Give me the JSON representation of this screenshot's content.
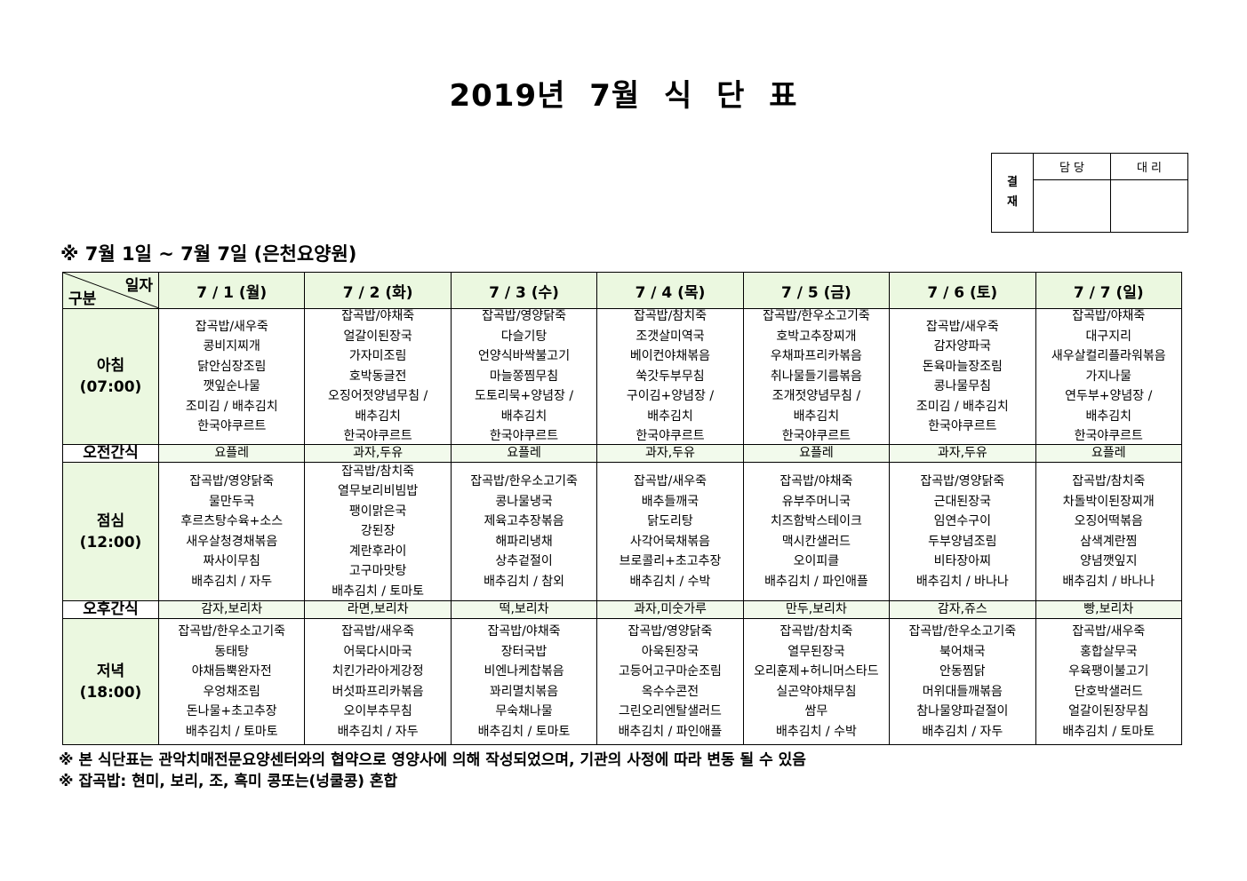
{
  "title": "2019년 7월 식 단 표",
  "approval": {
    "side_label": "결\n재",
    "side_top": "결",
    "side_bottom": "재",
    "col1": "담 당",
    "col2": "대 리"
  },
  "period": "※ 7월 1일 ~ 7월 7일 (은천요양원)",
  "corner": {
    "top": "일자",
    "bottom": "구분"
  },
  "days": [
    "7 / 1 (월)",
    "7 / 2 (화)",
    "7 / 3 (수)",
    "7 / 4 (목)",
    "7 / 5 (금)",
    "7 / 6 (토)",
    "7 / 7 (일)"
  ],
  "rows": [
    {
      "label": "아침",
      "time": "(07:00)",
      "type": "meal",
      "cells": [
        [
          "잡곡밥/새우죽",
          "콩비지찌개",
          "닭안심장조림",
          "깻잎순나물",
          "조미김 / 배추김치",
          "한국야쿠르트"
        ],
        [
          "잡곡밥/야채죽",
          "얼갈이된장국",
          "가자미조림",
          "호박동글전",
          "오징어젓양념무침 /",
          "배추김치",
          "한국야쿠르트"
        ],
        [
          "잡곡밥/영양닭죽",
          "다슬기탕",
          "언양식바싹불고기",
          "마늘쫑찜무침",
          "도토리묵+양념장 /",
          "배추김치",
          "한국야쿠르트"
        ],
        [
          "잡곡밥/참치죽",
          "조갯살미역국",
          "베이컨야채볶음",
          "쑥갓두부무침",
          "구이김+양념장 /",
          "배추김치",
          "한국야쿠르트"
        ],
        [
          "잡곡밥/한우소고기죽",
          "호박고추장찌개",
          "우채파프리카볶음",
          "취나물들기름볶음",
          "조개젓양념무침 /",
          "배추김치",
          "한국야쿠르트"
        ],
        [
          "잡곡밥/새우죽",
          "감자양파국",
          "돈육마늘장조림",
          "콩나물무침",
          "조미김 / 배추김치",
          "한국야쿠르트"
        ],
        [
          "잡곡밥/야채죽",
          "대구지리",
          "새우살컬리플라워볶음",
          "가지나물",
          "연두부+양념장 /",
          "배추김치",
          "한국야쿠르트"
        ]
      ]
    },
    {
      "label": "오전간식",
      "type": "snack",
      "cells": [
        "요플레",
        "과자,두유",
        "요플레",
        "과자,두유",
        "요플레",
        "과자,두유",
        "요플레"
      ]
    },
    {
      "label": "점심",
      "time": "(12:00)",
      "type": "meal",
      "cells": [
        [
          "잡곡밥/영양닭죽",
          "물만두국",
          "후르츠탕수육+소스",
          "새우살청경채볶음",
          "짜사이무침",
          "배추김치 / 자두"
        ],
        [
          "잡곡밥/참치죽",
          "열무보리비빔밥",
          "팽이맑은국",
          "강된장",
          "계란후라이",
          "고구마맛탕",
          "배추김치 / 토마토"
        ],
        [
          "잡곡밥/한우소고기죽",
          "콩나물냉국",
          "제육고추장볶음",
          "해파리냉채",
          "상추겉절이",
          "배추김치 / 참외"
        ],
        [
          "잡곡밥/새우죽",
          "배추들깨국",
          "닭도리탕",
          "사각어묵채볶음",
          "브로콜리+초고추장",
          "배추김치 / 수박"
        ],
        [
          "잡곡밥/야채죽",
          "유부주머니국",
          "치즈함박스테이크",
          "맥시칸샐러드",
          "오이피클",
          "배추김치 / 파인애플"
        ],
        [
          "잡곡밥/영양닭죽",
          "근대된장국",
          "임연수구이",
          "두부양념조림",
          "비타장아찌",
          "배추김치 / 바나나"
        ],
        [
          "잡곡밥/참치죽",
          "차돌박이된장찌개",
          "오징어떡볶음",
          "삼색계란찜",
          "양념깻잎지",
          "배추김치 / 바나나"
        ]
      ]
    },
    {
      "label": "오후간식",
      "type": "snack",
      "cells": [
        "감자,보리차",
        "라면,보리차",
        "떡,보리차",
        "과자,미숫가루",
        "만두,보리차",
        "감자,쥬스",
        "빵,보리차"
      ]
    },
    {
      "label": "저녁",
      "time": "(18:00)",
      "type": "meal",
      "cells": [
        [
          "잡곡밥/한우소고기죽",
          "동태탕",
          "야채듬뿍완자전",
          "우엉채조림",
          "돈나물+초고추장",
          "배추김치 / 토마토"
        ],
        [
          "잡곡밥/새우죽",
          "어묵다시마국",
          "치킨가라아게강정",
          "버섯파프리카볶음",
          "오이부추무침",
          "배추김치 / 자두"
        ],
        [
          "잡곡밥/야채죽",
          "장터국밥",
          "비엔나케찹볶음",
          "꽈리멸치볶음",
          "무숙채나물",
          "배추김치 / 토마토"
        ],
        [
          "잡곡밥/영양닭죽",
          "아욱된장국",
          "고등어고구마순조림",
          "옥수수콘전",
          "그린오리엔탈샐러드",
          "배추김치 / 파인애플"
        ],
        [
          "잡곡밥/참치죽",
          "열무된장국",
          "오리훈제+허니머스타드",
          "실곤약야채무침",
          "쌈무",
          "배추김치 / 수박"
        ],
        [
          "잡곡밥/한우소고기죽",
          "북어채국",
          "안동찜닭",
          "머위대들깨볶음",
          "참나물양파겉절이",
          "배추김치 / 자두"
        ],
        [
          "잡곡밥/새우죽",
          "홍합살무국",
          "우육팽이불고기",
          "단호박샐러드",
          "얼갈이된장무침",
          "배추김치 / 토마토"
        ]
      ]
    }
  ],
  "notes": [
    "※ 본 식단표는 관악치매전문요양센터와의 협약으로 영양사에 의해 작성되었으며, 기관의 사정에 따라 변동 될 수 있음",
    "※ 잡곡밥: 현미, 보리, 조, 흑미 콩또는(넝쿨콩) 혼합"
  ],
  "colors": {
    "header_fill": "#ebf8e0",
    "snack_fill": "#f2faec"
  }
}
